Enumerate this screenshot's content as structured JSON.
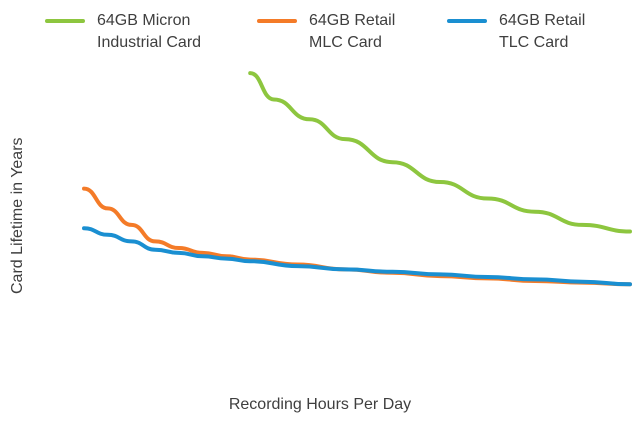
{
  "chart_data": {
    "type": "line",
    "xlabel": "Recording Hours Per Day",
    "ylabel": "Card Lifetime in Years",
    "x_range": [
      1,
      24
    ],
    "y_range": [
      0,
      10
    ],
    "grid": false,
    "legend_position": "top",
    "series": [
      {
        "name": "64GB Micron\nIndustrial Card",
        "color": "#8dc63f",
        "x": [
          8,
          9,
          10.5,
          12,
          14,
          16,
          18,
          20,
          22,
          24
        ],
        "y": [
          9.3,
          8.5,
          7.9,
          7.3,
          6.6,
          6.0,
          5.5,
          5.1,
          4.7,
          4.5
        ]
      },
      {
        "name": "64GB Retail\nMLC Card",
        "color": "#f47b28",
        "x": [
          1,
          2,
          3,
          4,
          5,
          6,
          7,
          8,
          10,
          12,
          14,
          16,
          18,
          20,
          22,
          24
        ],
        "y": [
          5.8,
          5.2,
          4.7,
          4.2,
          4.0,
          3.85,
          3.75,
          3.65,
          3.5,
          3.35,
          3.25,
          3.15,
          3.08,
          3.0,
          2.95,
          2.9
        ]
      },
      {
        "name": "64GB Retail\nTLC Card",
        "color": "#1a8fd1",
        "x": [
          1,
          2,
          3,
          4,
          5,
          6,
          7,
          8,
          10,
          12,
          14,
          16,
          18,
          20,
          22,
          24
        ],
        "y": [
          4.6,
          4.4,
          4.2,
          3.95,
          3.85,
          3.75,
          3.68,
          3.6,
          3.45,
          3.35,
          3.28,
          3.2,
          3.12,
          3.05,
          2.98,
          2.9
        ]
      }
    ]
  }
}
